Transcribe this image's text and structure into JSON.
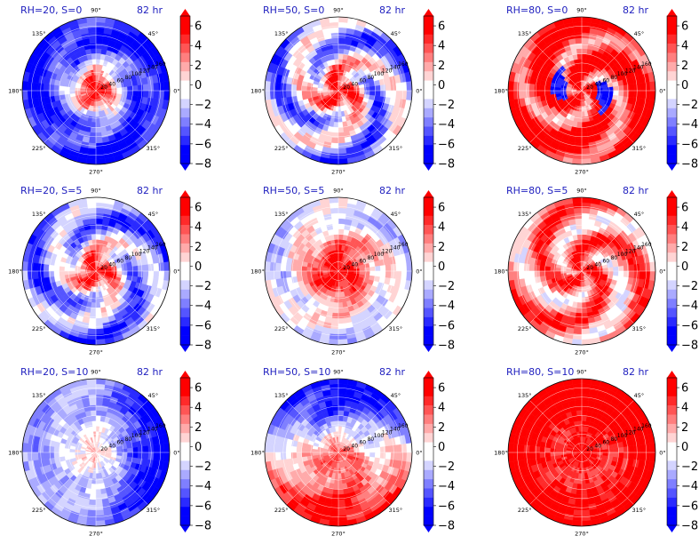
{
  "colors": {
    "title": "#1f1fbf",
    "cmap": [
      "#0000ff",
      "#2a2aff",
      "#5555ff",
      "#7f7fff",
      "#aaaaff",
      "#d4d4ff",
      "#ffffff",
      "#ffd4d4",
      "#ffaaaa",
      "#ff7f7f",
      "#ff5555",
      "#ff2a2a",
      "#ff0000"
    ]
  },
  "chart_data": [
    {
      "type": "polar-contour",
      "title_left": "RH=20, S=0",
      "title_right": "82 hr",
      "pattern": {
        "core": 7,
        "outer": -7,
        "spiral": 0.5
      }
    },
    {
      "type": "polar-contour",
      "title_left": "RH=50, S=0",
      "title_right": "82 hr",
      "pattern": {
        "core": 7,
        "outer": -3,
        "spiral": 1.0
      }
    },
    {
      "type": "polar-contour",
      "title_left": "RH=80, S=0",
      "title_right": "82 hr",
      "pattern": {
        "core": 7,
        "outer": 7,
        "spiral": 1.2,
        "bluering": true
      }
    },
    {
      "type": "polar-contour",
      "title_left": "RH=20, S=5",
      "title_right": "82 hr",
      "pattern": {
        "core": 7,
        "outer": -4,
        "spiral": 0.8
      }
    },
    {
      "type": "polar-contour",
      "title_left": "RH=50, S=5",
      "title_right": "82 hr",
      "pattern": {
        "core": 7,
        "outer": -2,
        "spiral": 0.4,
        "bigcore": true
      }
    },
    {
      "type": "polar-contour",
      "title_left": "RH=80, S=5",
      "title_right": "82 hr",
      "pattern": {
        "core": 6,
        "outer": 3,
        "spiral": 0.9
      }
    },
    {
      "type": "polar-contour",
      "title_left": "RH=20, S=10",
      "title_right": "82 hr",
      "pattern": {
        "core": 1,
        "outer": -3,
        "east": -6,
        "spiral": 0.2
      }
    },
    {
      "type": "polar-contour",
      "title_left": "RH=50, S=10",
      "title_right": "82 hr",
      "pattern": {
        "core": 4,
        "outer": 0,
        "north": -7,
        "south": 6,
        "spiral": 0.3
      }
    },
    {
      "type": "polar-contour",
      "title_left": "RH=80, S=10",
      "title_right": "82 hr",
      "pattern": {
        "core": 7,
        "outer": 7,
        "north": 2,
        "spiral": 0.1
      }
    }
  ],
  "angle_labels": [
    "90°",
    "45°",
    "0°",
    "315°",
    "270°",
    "225°",
    "180°",
    "135°"
  ],
  "radial_labels": [
    "20",
    "40",
    "60",
    "80",
    "100",
    "120",
    "140",
    "160"
  ],
  "colorbar": {
    "levels": [
      -8,
      -7,
      -6,
      -5,
      -4,
      -3,
      -2,
      -1,
      0,
      1,
      2,
      3,
      4,
      5,
      6,
      7
    ],
    "tick_labels": [
      "6",
      "4",
      "2",
      "0",
      "−2",
      "−4",
      "−6",
      "−8"
    ]
  }
}
